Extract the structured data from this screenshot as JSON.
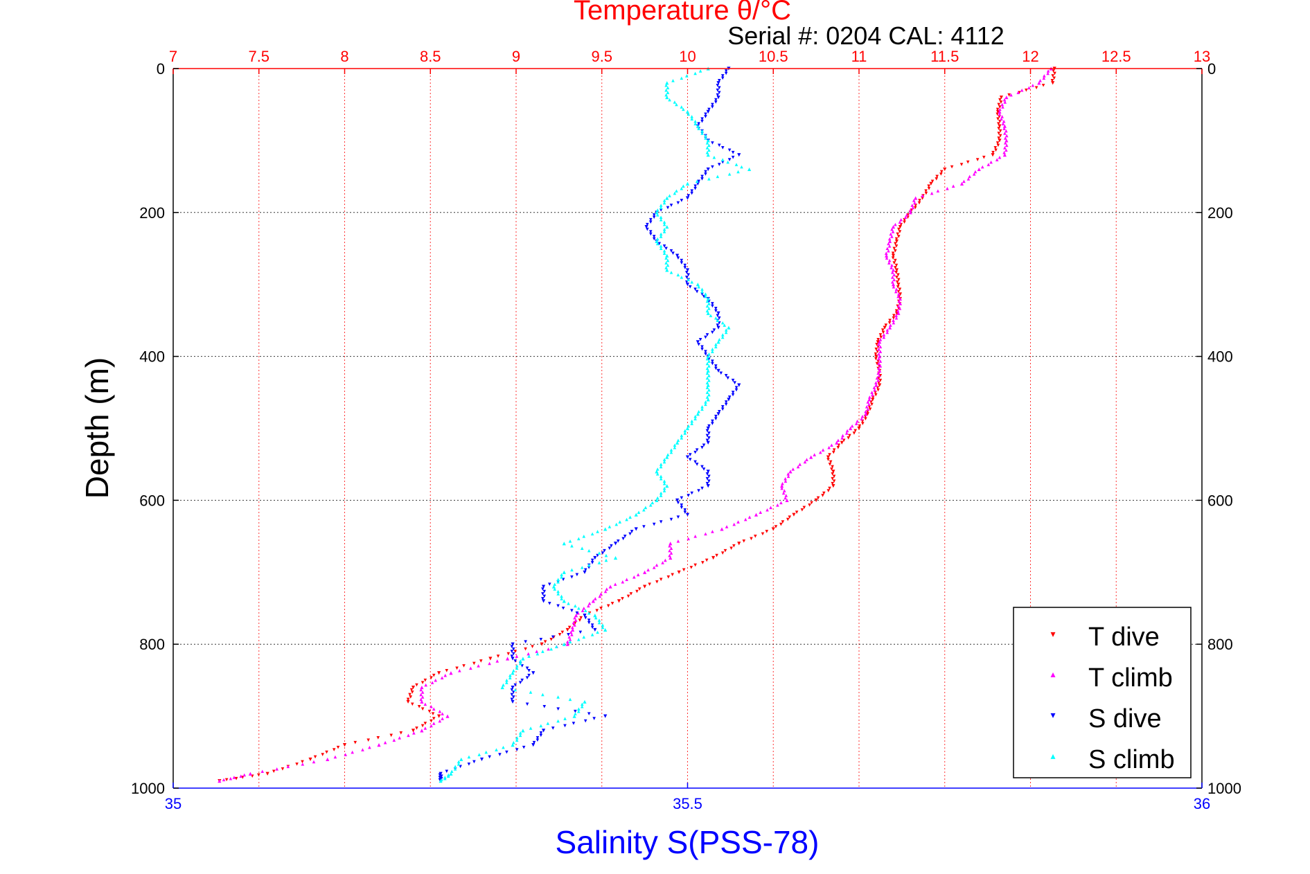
{
  "chart_data": {
    "type": "scatter",
    "title": "Temperature θ/°C",
    "subtitle": "Serial #: 0204  CAL: 4112",
    "xlabel_bottom": "Salinity S(PSS-78)",
    "xlabel_top": "Temperature θ/°C",
    "ylabel": "Depth (m)",
    "grid": true,
    "legend_position": "bottom-right",
    "y_axis": {
      "label": "Depth (m)",
      "range": [
        0,
        1000
      ],
      "reversed": true,
      "ticks": [
        "0",
        "200",
        "400",
        "600",
        "800",
        "1000"
      ]
    },
    "top_axis": {
      "label": "Temperature θ/°C",
      "range": [
        7,
        13
      ],
      "color": "#ff0000",
      "ticks": [
        "7",
        "7.5",
        "8",
        "8.5",
        "9",
        "9.5",
        "10",
        "10.5",
        "11",
        "11.5",
        "12",
        "12.5",
        "13"
      ]
    },
    "bottom_axis": {
      "label": "Salinity S(PSS-78)",
      "range": [
        35,
        36
      ],
      "color": "#0000ff",
      "ticks": [
        "35",
        "35.5",
        "36"
      ]
    },
    "series": [
      {
        "name": "T dive",
        "axis": "top",
        "color": "#ff0000",
        "marker": "triangle-down",
        "depth": [
          0,
          20,
          40,
          60,
          80,
          100,
          120,
          140,
          160,
          180,
          200,
          220,
          240,
          260,
          280,
          300,
          320,
          340,
          360,
          380,
          400,
          420,
          440,
          460,
          480,
          500,
          520,
          540,
          560,
          580,
          600,
          620,
          640,
          660,
          680,
          700,
          720,
          740,
          760,
          780,
          800,
          820,
          840,
          860,
          880,
          900,
          920,
          940,
          960,
          980,
          990
        ],
        "values": [
          12.14,
          12.13,
          11.83,
          11.81,
          11.82,
          11.82,
          11.78,
          11.5,
          11.42,
          11.37,
          11.3,
          11.24,
          11.22,
          11.2,
          11.22,
          11.23,
          11.24,
          11.22,
          11.15,
          11.11,
          11.1,
          11.12,
          11.12,
          11.08,
          11.05,
          11.0,
          10.9,
          10.82,
          10.85,
          10.85,
          10.75,
          10.62,
          10.5,
          10.3,
          10.15,
          9.95,
          9.75,
          9.6,
          9.4,
          9.3,
          9.15,
          8.85,
          8.55,
          8.4,
          8.37,
          8.55,
          8.4,
          8.0,
          7.8,
          7.55,
          7.27
        ]
      },
      {
        "name": "T climb",
        "axis": "top",
        "color": "#ff00ff",
        "marker": "triangle-up",
        "depth": [
          0,
          20,
          40,
          60,
          80,
          100,
          120,
          140,
          160,
          180,
          200,
          220,
          240,
          260,
          280,
          300,
          320,
          340,
          360,
          380,
          400,
          420,
          440,
          460,
          480,
          500,
          520,
          540,
          560,
          580,
          600,
          620,
          640,
          660,
          680,
          700,
          720,
          740,
          760,
          780,
          800,
          820,
          840,
          860,
          880,
          900,
          920,
          940,
          960,
          980,
          990
        ],
        "values": [
          12.12,
          12.05,
          11.86,
          11.82,
          11.85,
          11.86,
          11.85,
          11.7,
          11.6,
          11.33,
          11.3,
          11.2,
          11.18,
          11.16,
          11.2,
          11.2,
          11.24,
          11.23,
          11.18,
          11.12,
          11.12,
          11.12,
          11.1,
          11.06,
          11.04,
          10.95,
          10.87,
          10.72,
          10.6,
          10.55,
          10.58,
          10.4,
          10.2,
          9.9,
          9.9,
          9.75,
          9.55,
          9.45,
          9.35,
          9.33,
          9.3,
          8.95,
          8.62,
          8.45,
          8.45,
          8.6,
          8.45,
          8.2,
          7.9,
          7.45,
          7.27
        ]
      },
      {
        "name": "S dive",
        "axis": "bottom",
        "color": "#0000ff",
        "marker": "triangle-down",
        "depth": [
          0,
          20,
          40,
          60,
          80,
          100,
          120,
          140,
          160,
          180,
          200,
          220,
          240,
          260,
          280,
          300,
          320,
          340,
          360,
          380,
          400,
          420,
          440,
          460,
          480,
          500,
          520,
          540,
          560,
          580,
          600,
          620,
          640,
          660,
          680,
          700,
          720,
          740,
          760,
          780,
          800,
          820,
          840,
          860,
          880,
          900,
          920,
          940,
          960,
          980,
          990
        ],
        "values": [
          35.54,
          35.53,
          35.53,
          35.52,
          35.51,
          35.52,
          35.55,
          35.52,
          35.51,
          35.5,
          35.47,
          35.46,
          35.47,
          35.49,
          35.5,
          35.5,
          35.52,
          35.53,
          35.53,
          35.51,
          35.52,
          35.53,
          35.55,
          35.54,
          35.53,
          35.52,
          35.52,
          35.5,
          35.52,
          35.52,
          35.49,
          35.5,
          35.45,
          35.43,
          35.41,
          35.4,
          35.36,
          35.36,
          35.4,
          35.41,
          35.33,
          35.33,
          35.35,
          35.33,
          35.33,
          35.42,
          35.36,
          35.35,
          35.3,
          35.26,
          35.26
        ]
      },
      {
        "name": "S climb",
        "axis": "bottom",
        "color": "#00ffff",
        "marker": "triangle-up",
        "depth": [
          0,
          20,
          40,
          60,
          80,
          100,
          120,
          140,
          160,
          180,
          200,
          220,
          240,
          260,
          280,
          300,
          320,
          340,
          360,
          380,
          400,
          420,
          440,
          460,
          480,
          500,
          520,
          540,
          560,
          580,
          600,
          620,
          640,
          660,
          680,
          700,
          720,
          740,
          760,
          780,
          800,
          820,
          840,
          860,
          880,
          900,
          920,
          940,
          960,
          980,
          990
        ],
        "values": [
          35.52,
          35.48,
          35.48,
          35.5,
          35.51,
          35.52,
          35.52,
          35.56,
          35.5,
          35.48,
          35.47,
          35.48,
          35.47,
          35.48,
          35.48,
          35.51,
          35.52,
          35.52,
          35.54,
          35.53,
          35.52,
          35.52,
          35.52,
          35.52,
          35.51,
          35.5,
          35.49,
          35.48,
          35.47,
          35.48,
          35.47,
          35.45,
          35.42,
          35.38,
          35.43,
          35.38,
          35.37,
          35.38,
          35.41,
          35.42,
          35.38,
          35.34,
          35.33,
          35.32,
          35.4,
          35.39,
          35.34,
          35.33,
          35.28,
          35.27,
          35.26
        ]
      }
    ]
  },
  "legend": {
    "items": [
      {
        "label": "T dive",
        "color": "#ff0000",
        "marker": "▾"
      },
      {
        "label": "T climb",
        "color": "#ff00ff",
        "marker": "▴"
      },
      {
        "label": "S dive",
        "color": "#0000ff",
        "marker": "▾"
      },
      {
        "label": "S climb",
        "color": "#00ffff",
        "marker": "▴"
      }
    ]
  }
}
